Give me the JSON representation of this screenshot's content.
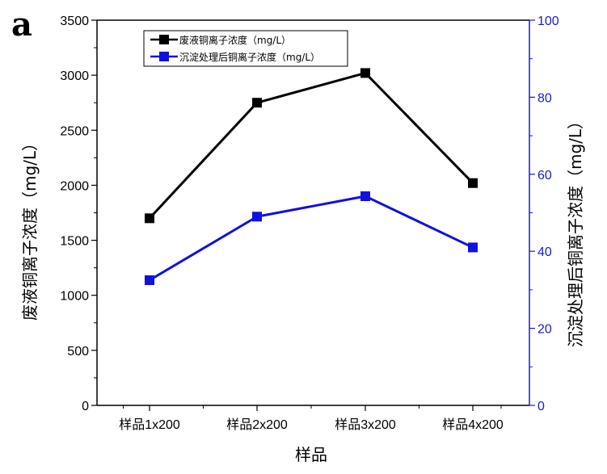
{
  "panel_label": "a",
  "chart_data": {
    "type": "line",
    "categories": [
      "样品1x200",
      "样品2x200",
      "样品3x200",
      "样品4x200"
    ],
    "xlabel": "样品",
    "ylabel": "废液铜离子浓度（mg/L）",
    "ylabel_right": "沉淀处理后铜离子浓度（mg/L）",
    "ylim": [
      0,
      3500
    ],
    "ylim_right": [
      0,
      100
    ],
    "yticks": [
      0,
      500,
      1000,
      1500,
      2000,
      2500,
      3000,
      3500
    ],
    "yticks_right": [
      0,
      20,
      40,
      60,
      80,
      100
    ],
    "grid": false,
    "legend_position": "top-left",
    "series": [
      {
        "name": "废液铜离子浓度（mg/L）",
        "axis": "left",
        "color": "#000000",
        "marker": "square",
        "values": [
          1700,
          2750,
          3020,
          2020
        ]
      },
      {
        "name": "沉淀处理后铜离子浓度（mg/L）",
        "axis": "right",
        "color": "#1010e0",
        "marker": "square",
        "values": [
          32.5,
          49,
          54.3,
          41
        ]
      }
    ]
  }
}
